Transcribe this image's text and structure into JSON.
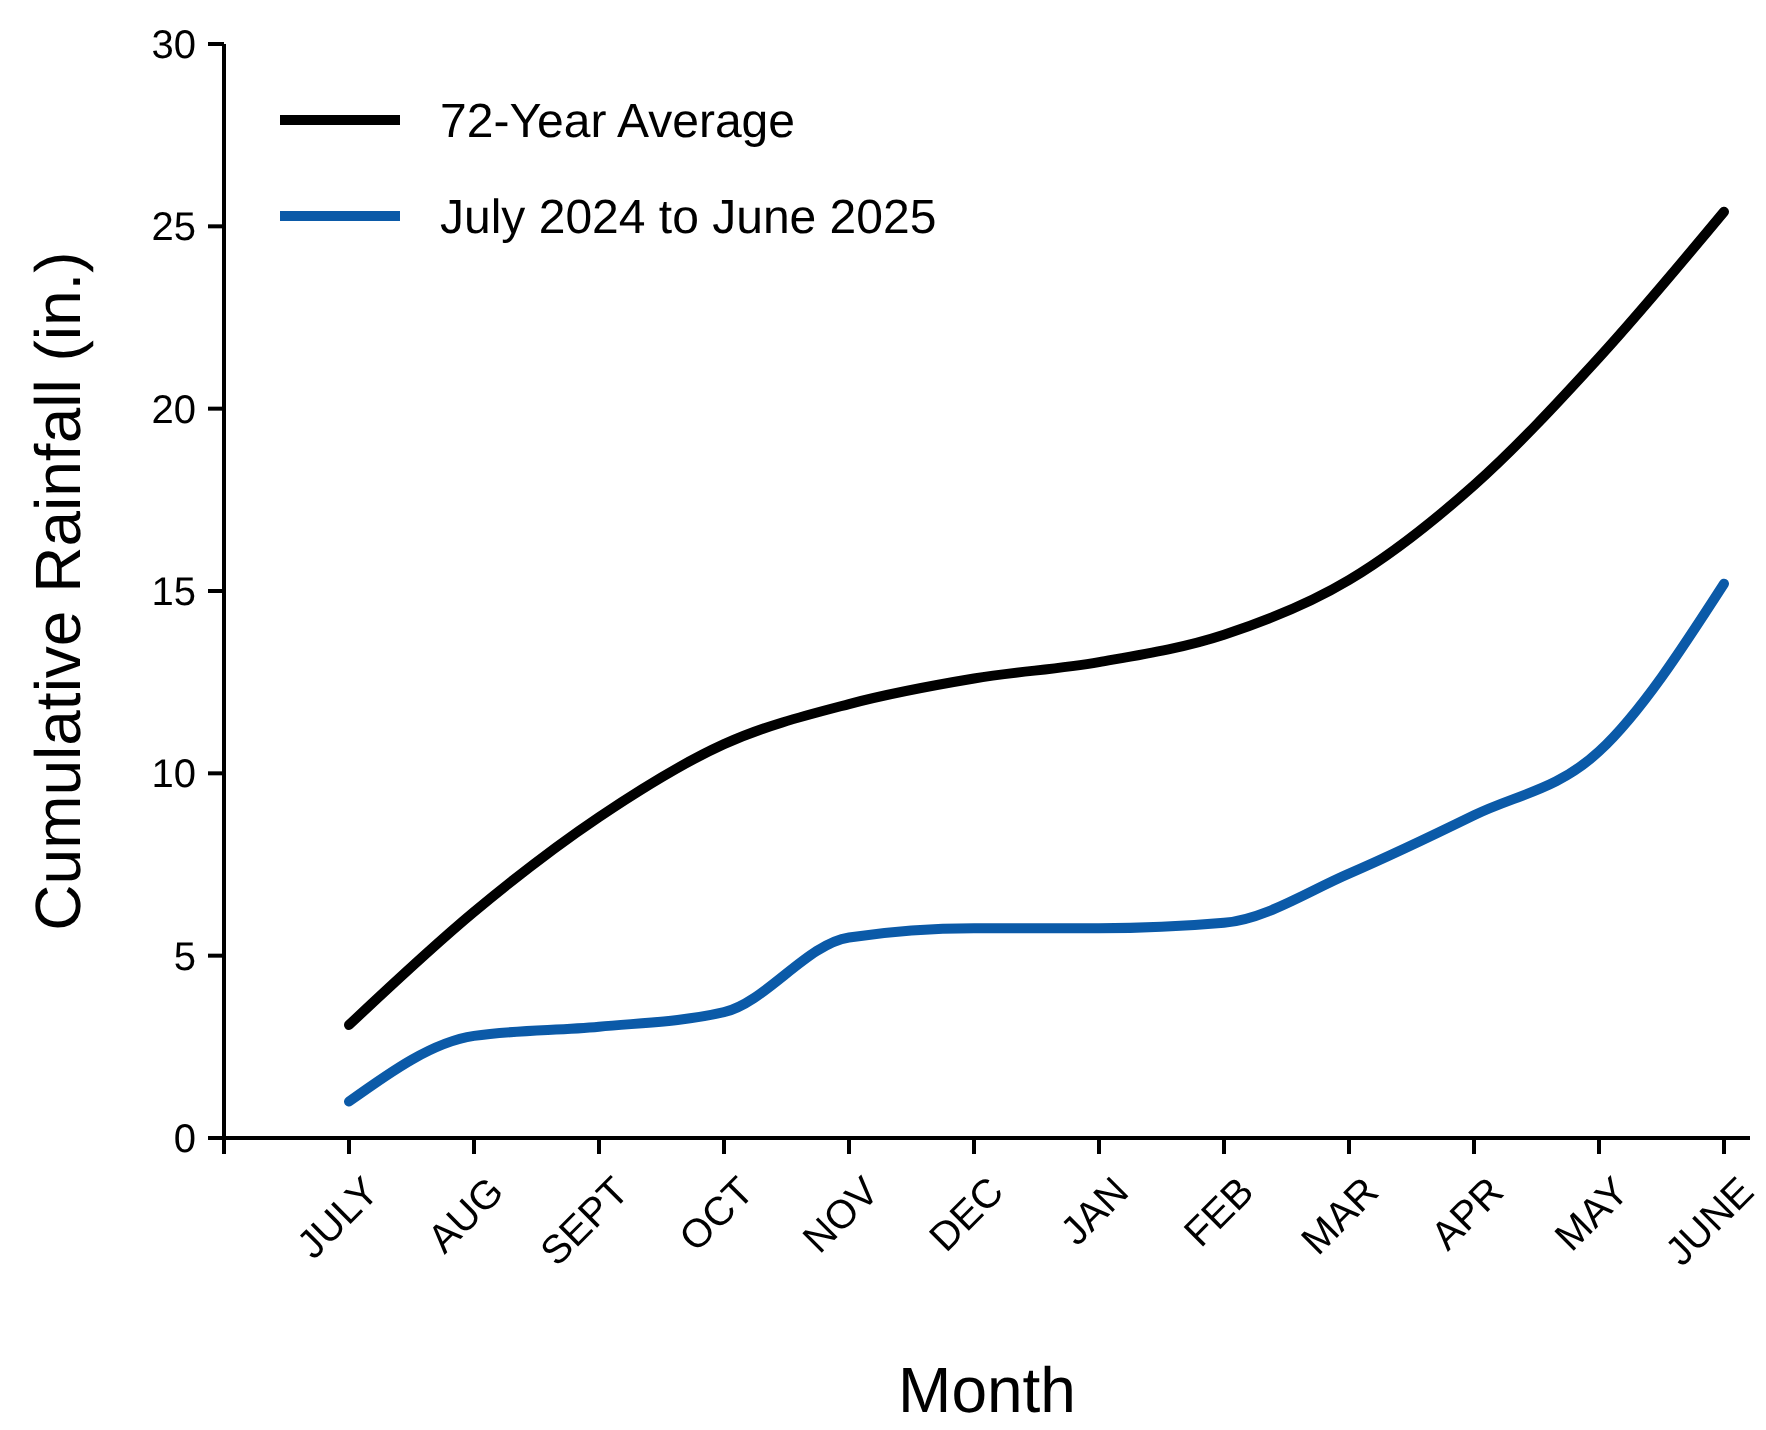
{
  "chart_data": {
    "type": "line",
    "xlabel": "Month",
    "ylabel": "Cumulative Rainfall (in.)",
    "categories": [
      "JULY",
      "AUG",
      "SEPT",
      "OCT",
      "NOV",
      "DEC",
      "JAN",
      "FEB",
      "MAR",
      "APR",
      "MAY",
      "JUNE"
    ],
    "series": [
      {
        "name": "72-Year Average",
        "color": "#000000",
        "values": [
          3.1,
          6.2,
          8.8,
          10.8,
          11.9,
          12.6,
          13.05,
          13.8,
          15.3,
          17.9,
          21.4,
          25.4
        ]
      },
      {
        "name": "July 2024 to June 2025",
        "color": "#0b5aa8",
        "values": [
          1.0,
          2.8,
          3.05,
          3.45,
          5.5,
          5.75,
          5.75,
          5.9,
          7.25,
          8.85,
          10.6,
          15.2
        ]
      }
    ],
    "ylim": [
      0,
      30
    ],
    "yticks": [
      0,
      5,
      10,
      15,
      20,
      25,
      30
    ],
    "grid": false,
    "legend": "top left",
    "marker": "none",
    "line_style": "solid"
  }
}
